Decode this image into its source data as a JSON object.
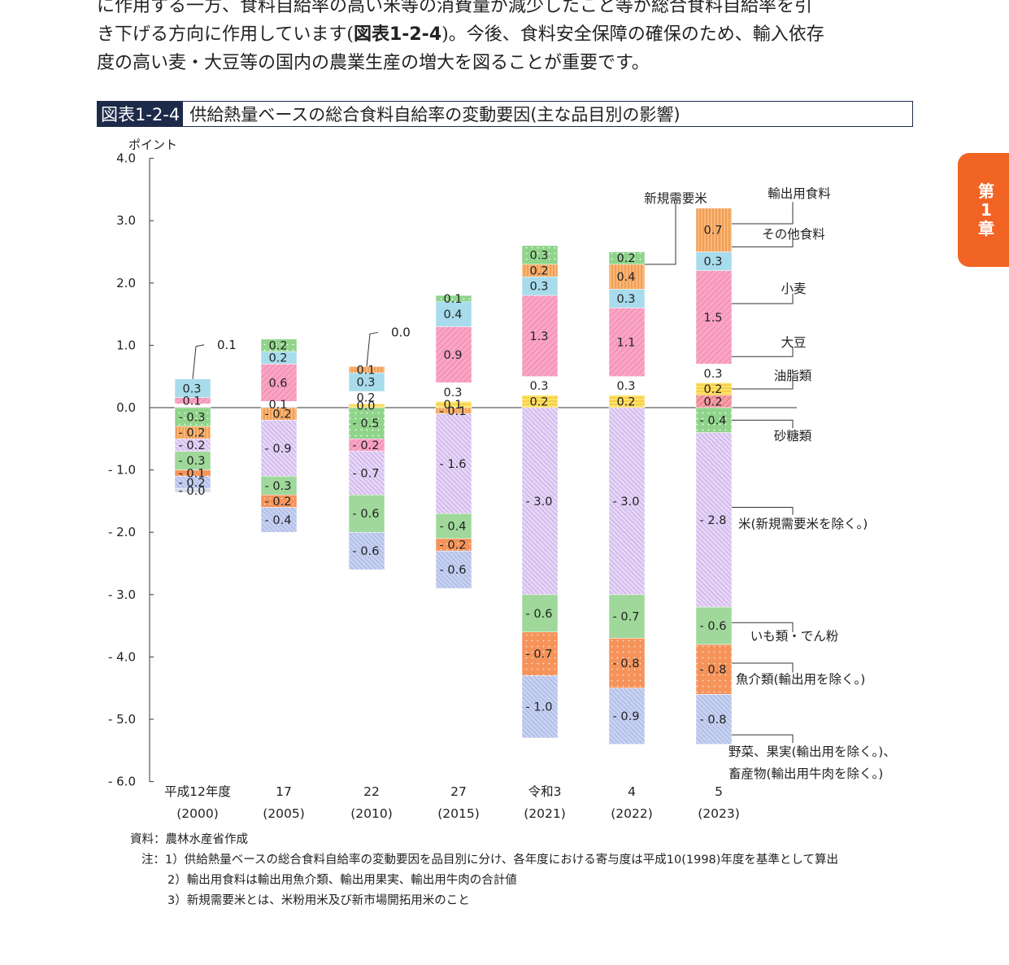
{
  "body_text": {
    "line1": "に作用する一方、食料自給率の高い米等の消費量が減少したこと等が総合食料自給率を引",
    "line2_pre": "き下げる方向に作用しています(",
    "line2_ref": "図表1-2-4",
    "line2_post": ")。今後、食料安全保障の確保のため、輸入依存",
    "line3": "度の高い麦・大豆等の国内の農業生産の増大を図ることが重要です。"
  },
  "figure": {
    "id": "図表1-2-4",
    "title": "供給熱量ベースの総合食料自給率の変動要因(主な品目別の影響)"
  },
  "chapter_tab": {
    "line1": "第",
    "line2": "1",
    "line3": "章"
  },
  "notes": {
    "source": "資料：農林水産省作成",
    "note1": "注：1）供給熱量ベースの総合食料自給率の変動要因を品目別に分け、各年度における寄与度は平成10(1998)年度を基準として算出",
    "note2": "2）輸出用食料は輸出用魚介類、輸出用果実、輸出用牛肉の合計値",
    "note3": "3）新規需要米とは、米粉用米及び新市場開拓用米のこと"
  },
  "chart_data": {
    "type": "bar",
    "stacked": true,
    "ylabel": "ポイント",
    "ylim": [
      -6.0,
      4.0
    ],
    "yticks": [
      "4.0",
      "3.0",
      "2.0",
      "1.0",
      "0.0",
      "- 1.0",
      "- 2.0",
      "- 3.0",
      "- 4.0",
      "- 5.0",
      "- 6.0"
    ],
    "categories": [
      [
        "平成12年度",
        "(2000)"
      ],
      [
        "17",
        "(2005)"
      ],
      [
        "22",
        "(2010)"
      ],
      [
        "27",
        "(2015)"
      ],
      [
        "令和3",
        "(2021)"
      ],
      [
        "4",
        "(2022)"
      ],
      [
        "5",
        "(2023)"
      ]
    ],
    "series": [
      {
        "name": "輸出用食料",
        "color": "#f4a0a8",
        "pattern": "diagonal-red",
        "side": "pos",
        "values": [
          null,
          null,
          null,
          null,
          null,
          null,
          0.2
        ],
        "labels": [
          "",
          "",
          "",
          "",
          "",
          "",
          "0.2"
        ]
      },
      {
        "name": "新規需要米",
        "color": "#fde36a",
        "pattern": "stripe-yellow",
        "side": "pos",
        "values": [
          null,
          null,
          0.0,
          0.1,
          0.2,
          0.2,
          0.2
        ],
        "labels": [
          "",
          "",
          "0.0",
          "0.1",
          "0.2",
          "0.2",
          "0.2"
        ]
      },
      {
        "name": "その他食料",
        "color": "#c9c9c9",
        "pattern": "gray",
        "side": "pos",
        "values": [
          0.0,
          0.1,
          0.2,
          0.3,
          0.3,
          0.3,
          0.3
        ],
        "labels": [
          "",
          "0.1",
          "0.2",
          "0.3",
          "0.3",
          "0.3",
          "0.3"
        ]
      },
      {
        "name": "小麦",
        "color": "#f8a6c4",
        "pattern": "diagonal-pink",
        "side": "pos",
        "values": [
          0.1,
          0.6,
          null,
          0.9,
          1.3,
          1.1,
          1.5
        ],
        "labels": [
          "0.1",
          "0.6",
          "",
          "0.9",
          "1.3",
          "1.1",
          "1.5"
        ]
      },
      {
        "name": "大豆",
        "color": "#a8dcec",
        "pattern": "solid",
        "side": "pos",
        "values": [
          0.3,
          0.2,
          0.3,
          0.4,
          0.3,
          0.3,
          0.3
        ],
        "labels": [
          "0.3",
          "0.2",
          "0.3",
          "0.4",
          "0.3",
          "0.3",
          "0.3"
        ]
      },
      {
        "name": "油脂類",
        "color": "#f5a967",
        "pattern": "vertical-orange",
        "side": "pos",
        "values": [
          null,
          null,
          0.1,
          null,
          0.2,
          0.4,
          0.7
        ],
        "labels": [
          "",
          "",
          "0.1",
          "",
          "0.2",
          "0.4",
          "0.7"
        ]
      },
      {
        "name": "砂糖類",
        "color": "#9fd89a",
        "pattern": "dots-green",
        "side": "pos",
        "values": [
          null,
          0.2,
          null,
          0.1,
          0.3,
          0.2,
          null
        ],
        "labels": [
          "",
          "0.2",
          "",
          "0.1",
          "0.3",
          "0.2",
          ""
        ]
      },
      {
        "name": "砂糖類",
        "color": "#9fd89a",
        "pattern": "dots-green",
        "side": "neg",
        "values": [
          -0.3,
          null,
          -0.5,
          null,
          null,
          null,
          -0.4
        ],
        "labels": [
          "- 0.3",
          "",
          "- 0.5",
          "",
          "",
          "",
          "- 0.4"
        ]
      },
      {
        "name": "油脂類",
        "color": "#f5a967",
        "pattern": "vertical-orange",
        "side": "neg",
        "values": [
          -0.2,
          -0.2,
          null,
          -0.1,
          null,
          null,
          null
        ],
        "labels": [
          "- 0.2",
          "- 0.2",
          "",
          "- 0.1",
          "",
          "",
          ""
        ]
      },
      {
        "name": "小麦",
        "color": "#f8a6c4",
        "pattern": "diagonal-pink",
        "side": "neg",
        "values": [
          null,
          null,
          -0.2,
          null,
          null,
          null,
          null
        ],
        "labels": [
          "",
          "",
          "- 0.2",
          "",
          "",
          "",
          ""
        ]
      },
      {
        "name": "米(新規需要米を除く。)",
        "color": "#dcc4f0",
        "pattern": "diagonal-purple",
        "side": "neg",
        "values": [
          -0.2,
          -0.9,
          -0.7,
          -1.6,
          -3.0,
          -3.0,
          -2.8
        ],
        "labels": [
          "- 0.2",
          "- 0.9",
          "- 0.7",
          "- 1.6",
          "- 3.0",
          "- 3.0",
          "- 2.8"
        ]
      },
      {
        "name": "いも類・でん粉",
        "color": "#9fd89a",
        "pattern": "solid",
        "side": "neg",
        "values": [
          -0.3,
          -0.3,
          -0.6,
          -0.4,
          -0.6,
          -0.7,
          -0.6
        ],
        "labels": [
          "- 0.3",
          "- 0.3",
          "- 0.6",
          "- 0.4",
          "- 0.6",
          "- 0.7",
          "- 0.6"
        ]
      },
      {
        "name": "魚介類(輸出用を除く。)",
        "color": "#f5935a",
        "pattern": "dots-orange",
        "side": "neg",
        "values": [
          -0.1,
          -0.2,
          null,
          -0.2,
          -0.7,
          -0.8,
          -0.8
        ],
        "labels": [
          "- 0.1",
          "- 0.2",
          "",
          "- 0.2",
          "- 0.7",
          "- 0.8",
          "- 0.8"
        ]
      },
      {
        "name": "野菜、果実(輸出用を除く。)、畜産物(輸出用牛肉を除く。)",
        "color": "#b8c4ea",
        "pattern": "diagonal-blue",
        "side": "neg",
        "values": [
          -0.2,
          -0.4,
          -0.6,
          -0.6,
          -1.0,
          -0.9,
          -0.8
        ],
        "labels": [
          "- 0.2",
          "- 0.4",
          "- 0.6",
          "- 0.6",
          "- 1.0",
          "- 0.9",
          "- 0.8"
        ]
      },
      {
        "name": "(その他)",
        "color": "#d8dbe8",
        "pattern": "solid",
        "side": "neg",
        "values": [
          0.0,
          null,
          null,
          null,
          null,
          null,
          null
        ],
        "labels": [
          "- 0.0",
          "",
          "",
          "",
          "",
          "",
          ""
        ]
      }
    ],
    "top_callouts": [
      {
        "category_index": 0,
        "text": "0.1"
      },
      {
        "category_index": 2,
        "text": "0.0"
      }
    ],
    "legend_labels": {
      "export_food": "輸出用食料",
      "new_demand_rice": "新規需要米",
      "other_food": "その他食料",
      "wheat": "小麦",
      "soybean": "大豆",
      "oils": "油脂類",
      "sugar": "砂糖類",
      "rice": "米(新規需要米を除く。)",
      "potato": "いも類・でん粉",
      "fish": "魚介類(輸出用を除く。)",
      "veg_line1": "野菜、果実(輸出用を除く。)、",
      "veg_line2": "畜産物(輸出用牛肉を除く。)"
    }
  }
}
